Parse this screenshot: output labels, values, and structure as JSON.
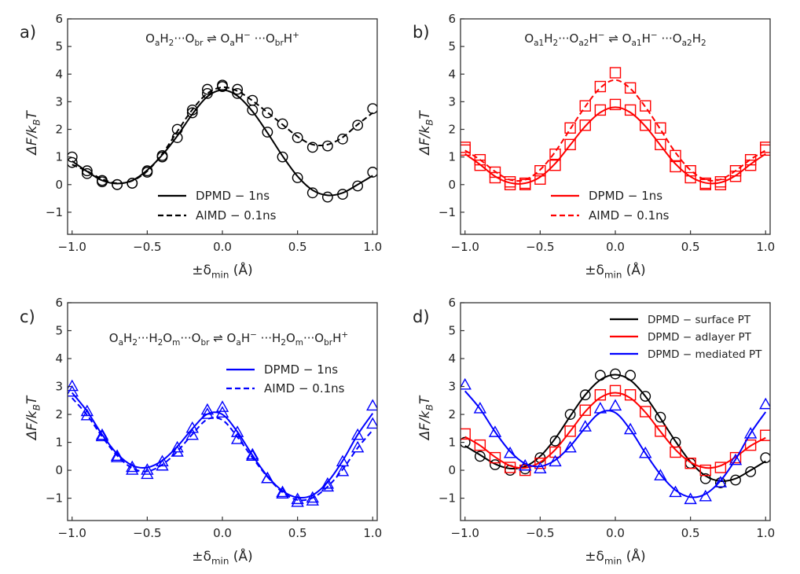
{
  "chart_data": [
    {
      "type": "line",
      "panel_label": "a)",
      "annotation": {
        "parts": [
          [
            "O",
            ""
          ],
          [
            "a",
            "sub"
          ],
          [
            "H",
            ""
          ],
          [
            "2",
            "sub"
          ],
          [
            "···O",
            ""
          ],
          [
            "br",
            "sub"
          ],
          [
            " ⇌ O",
            ""
          ],
          [
            "a",
            "sub"
          ],
          [
            "H",
            ""
          ],
          [
            "−",
            "sup"
          ],
          [
            " ···O",
            ""
          ],
          [
            "br",
            "sub"
          ],
          [
            "H",
            ""
          ],
          [
            "+",
            "sup"
          ]
        ]
      },
      "xlabel": "±δ_min (Å)",
      "ylabel": "ΔF/k_BT",
      "xlim": [
        -1.03,
        1.03
      ],
      "ylim": [
        -1.8,
        6
      ],
      "xticks": [
        -1.0,
        -0.5,
        0.0,
        0.5,
        1.0
      ],
      "xtick_labels": [
        "−1.0",
        "−0.5",
        "0.0",
        "0.5",
        "1.0"
      ],
      "yticks": [
        -1,
        0,
        1,
        2,
        3,
        4,
        5,
        6
      ],
      "ytick_labels": [
        "−1",
        "0",
        "1",
        "2",
        "3",
        "4",
        "5",
        "6"
      ],
      "legend": {
        "placement": "lower-center",
        "entries": [
          {
            "label": "DPMD − 1ns",
            "color": "#000000",
            "dash": "solid"
          },
          {
            "label": "AIMD − 0.1ns",
            "color": "#000000",
            "dash": "dashed"
          }
        ]
      },
      "x": [
        -1.0,
        -0.9,
        -0.8,
        -0.7,
        -0.6,
        -0.5,
        -0.4,
        -0.3,
        -0.2,
        -0.1,
        0.0,
        0.1,
        0.2,
        0.3,
        0.4,
        0.5,
        0.6,
        0.7,
        0.8,
        0.9,
        1.0
      ],
      "series": [
        {
          "name": "DPMD − 1ns",
          "color": "#000000",
          "dash": "solid",
          "marker": "circle",
          "values": [
            1.0,
            0.4,
            0.1,
            0.0,
            0.05,
            0.5,
            1.05,
            1.7,
            2.6,
            3.3,
            3.55,
            3.3,
            2.7,
            1.9,
            1.0,
            0.25,
            -0.3,
            -0.45,
            -0.35,
            -0.05,
            0.45
          ]
        },
        {
          "name": "AIMD − 0.1ns",
          "color": "#000000",
          "dash": "dashed",
          "marker": "circle",
          "values": [
            0.8,
            0.5,
            0.15,
            0.0,
            0.05,
            0.45,
            1.0,
            2.0,
            2.7,
            3.45,
            3.6,
            3.45,
            3.05,
            2.6,
            2.2,
            1.7,
            1.35,
            1.4,
            1.65,
            2.15,
            2.75
          ]
        }
      ]
    },
    {
      "type": "line",
      "panel_label": "b)",
      "annotation": {
        "parts": [
          [
            "O",
            ""
          ],
          [
            "a1",
            "sub"
          ],
          [
            "H",
            ""
          ],
          [
            "2",
            "sub"
          ],
          [
            "···O",
            ""
          ],
          [
            "a2",
            "sub"
          ],
          [
            "H",
            ""
          ],
          [
            "−",
            "sup"
          ],
          [
            " ⇌ O",
            ""
          ],
          [
            "a1",
            "sub"
          ],
          [
            "H",
            ""
          ],
          [
            "−",
            "sup"
          ],
          [
            " ···O",
            ""
          ],
          [
            "a2",
            "sub"
          ],
          [
            "H",
            ""
          ],
          [
            "2",
            "sub"
          ]
        ]
      },
      "xlabel": "±δ_min (Å)",
      "ylabel": "ΔF/k_BT",
      "xlim": [
        -1.03,
        1.03
      ],
      "ylim": [
        -1.8,
        6
      ],
      "xticks": [
        -1.0,
        -0.5,
        0.0,
        0.5,
        1.0
      ],
      "xtick_labels": [
        "−1.0",
        "−0.5",
        "0.0",
        "0.5",
        "1.0"
      ],
      "yticks": [
        -1,
        0,
        1,
        2,
        3,
        4,
        5,
        6
      ],
      "ytick_labels": [
        "−1",
        "0",
        "1",
        "2",
        "3",
        "4",
        "5",
        "6"
      ],
      "legend": {
        "placement": "lower-center",
        "entries": [
          {
            "label": "DPMD − 1ns",
            "color": "#ff0000",
            "dash": "solid"
          },
          {
            "label": "AIMD − 0.1ns",
            "color": "#ff0000",
            "dash": "dashed"
          }
        ]
      },
      "x": [
        -1.0,
        -0.9,
        -0.8,
        -0.7,
        -0.6,
        -0.5,
        -0.4,
        -0.3,
        -0.2,
        -0.1,
        0.0,
        0.1,
        0.2,
        0.3,
        0.4,
        0.5,
        0.6,
        0.7,
        0.8,
        0.9,
        1.0
      ],
      "series": [
        {
          "name": "DPMD − 1ns",
          "color": "#ff0000",
          "dash": "solid",
          "marker": "square",
          "values": [
            1.25,
            0.7,
            0.25,
            0.0,
            0.0,
            0.2,
            0.7,
            1.45,
            2.15,
            2.7,
            2.9,
            2.7,
            2.15,
            1.45,
            0.65,
            0.25,
            0.0,
            0.0,
            0.3,
            0.7,
            1.25
          ]
        },
        {
          "name": "AIMD − 0.1ns",
          "color": "#ff0000",
          "dash": "dashed",
          "marker": "square",
          "values": [
            1.35,
            0.9,
            0.45,
            0.1,
            0.05,
            0.5,
            1.1,
            2.05,
            2.85,
            3.55,
            4.05,
            3.5,
            2.85,
            2.05,
            1.05,
            0.5,
            0.05,
            0.1,
            0.5,
            0.9,
            1.35
          ]
        }
      ]
    },
    {
      "type": "line",
      "panel_label": "c)",
      "annotation": {
        "parts": [
          [
            "O",
            ""
          ],
          [
            "a",
            "sub"
          ],
          [
            "H",
            ""
          ],
          [
            "2",
            "sub"
          ],
          [
            "···H",
            ""
          ],
          [
            "2",
            "sub"
          ],
          [
            "O",
            ""
          ],
          [
            "m",
            "sub"
          ],
          [
            "···O",
            ""
          ],
          [
            "br",
            "sub"
          ],
          [
            " ⇌ O",
            ""
          ],
          [
            "a",
            "sub"
          ],
          [
            "H",
            ""
          ],
          [
            "−",
            "sup"
          ],
          [
            " ···H",
            ""
          ],
          [
            "2",
            "sub"
          ],
          [
            "O",
            ""
          ],
          [
            "m",
            "sub"
          ],
          [
            "···O",
            ""
          ],
          [
            "br",
            "sub"
          ],
          [
            "H",
            ""
          ],
          [
            "+",
            "sup"
          ]
        ]
      },
      "xlabel": "±δ_min (Å)",
      "ylabel": "ΔF/k_BT",
      "xlim": [
        -1.03,
        1.03
      ],
      "ylim": [
        -1.8,
        6
      ],
      "xticks": [
        -1.0,
        -0.5,
        0.0,
        0.5,
        1.0
      ],
      "xtick_labels": [
        "−1.0",
        "−0.5",
        "0.0",
        "0.5",
        "1.0"
      ],
      "yticks": [
        -1,
        0,
        1,
        2,
        3,
        4,
        5,
        6
      ],
      "ytick_labels": [
        "−1",
        "0",
        "1",
        "2",
        "3",
        "4",
        "5",
        "6"
      ],
      "legend": {
        "placement": "upper-right",
        "entries": [
          {
            "label": "DPMD − 1ns",
            "color": "#0000ff",
            "dash": "solid"
          },
          {
            "label": "AIMD − 0.1ns",
            "color": "#0000ff",
            "dash": "dashed"
          }
        ]
      },
      "x": [
        -1.0,
        -0.9,
        -0.8,
        -0.7,
        -0.6,
        -0.5,
        -0.4,
        -0.3,
        -0.2,
        -0.1,
        0.0,
        0.1,
        0.2,
        0.3,
        0.4,
        0.5,
        0.6,
        0.7,
        0.8,
        0.9,
        1.0
      ],
      "series": [
        {
          "name": "DPMD − 1ns",
          "color": "#0000ff",
          "dash": "solid",
          "marker": "triangle",
          "values": [
            3.0,
            2.1,
            1.25,
            0.5,
            0.1,
            0.0,
            0.3,
            0.8,
            1.5,
            2.15,
            2.25,
            1.35,
            0.55,
            -0.3,
            -0.8,
            -1.05,
            -1.0,
            -0.5,
            0.3,
            1.25,
            2.3
          ]
        },
        {
          "name": "AIMD − 0.1ns",
          "color": "#0000ff",
          "dash": "dashed",
          "marker": "triangle",
          "values": [
            2.8,
            1.95,
            1.2,
            0.45,
            0.0,
            -0.15,
            0.15,
            0.65,
            1.25,
            2.0,
            2.05,
            1.1,
            0.5,
            -0.3,
            -0.85,
            -1.15,
            -1.1,
            -0.6,
            -0.05,
            0.8,
            1.65
          ]
        }
      ]
    },
    {
      "type": "line",
      "panel_label": "d)",
      "annotation": {
        "parts": []
      },
      "xlabel": "±δ_min (Å)",
      "ylabel": "ΔF/k_BT",
      "xlim": [
        -1.03,
        1.03
      ],
      "ylim": [
        -1.8,
        6
      ],
      "xticks": [
        -1.0,
        -0.5,
        0.0,
        0.5,
        1.0
      ],
      "xtick_labels": [
        "−1.0",
        "−0.5",
        "0.0",
        "0.5",
        "1.0"
      ],
      "yticks": [
        -1,
        0,
        1,
        2,
        3,
        4,
        5,
        6
      ],
      "ytick_labels": [
        "−1",
        "0",
        "1",
        "2",
        "3",
        "4",
        "5",
        "6"
      ],
      "legend": {
        "placement": "upper-right",
        "entries": [
          {
            "label": "DPMD − surface PT",
            "color": "#000000",
            "dash": "solid"
          },
          {
            "label": "DPMD − adlayer PT",
            "color": "#ff0000",
            "dash": "solid"
          },
          {
            "label": "DPMD − mediated PT",
            "color": "#0000ff",
            "dash": "solid"
          }
        ]
      },
      "x": [
        -1.0,
        -0.9,
        -0.8,
        -0.7,
        -0.6,
        -0.5,
        -0.4,
        -0.3,
        -0.2,
        -0.1,
        0.0,
        0.1,
        0.2,
        0.3,
        0.4,
        0.5,
        0.6,
        0.7,
        0.8,
        0.9,
        1.0
      ],
      "series": [
        {
          "name": "DPMD − surface PT",
          "color": "#000000",
          "dash": "solid",
          "marker": "circle",
          "values": [
            1.0,
            0.5,
            0.2,
            0.0,
            0.05,
            0.45,
            1.05,
            2.0,
            2.7,
            3.4,
            3.45,
            3.4,
            2.65,
            1.9,
            1.0,
            0.25,
            -0.3,
            -0.45,
            -0.35,
            -0.05,
            0.45
          ]
        },
        {
          "name": "DPMD − adlayer PT",
          "color": "#ff0000",
          "dash": "solid",
          "marker": "square",
          "values": [
            1.3,
            0.9,
            0.45,
            0.1,
            0.0,
            0.25,
            0.65,
            1.4,
            2.15,
            2.7,
            2.85,
            2.7,
            2.1,
            1.4,
            0.65,
            0.25,
            0.0,
            0.1,
            0.45,
            0.9,
            1.25
          ]
        },
        {
          "name": "DPMD − mediated PT",
          "color": "#0000ff",
          "dash": "solid",
          "marker": "triangle",
          "values": [
            3.05,
            2.2,
            1.35,
            0.6,
            0.15,
            0.05,
            0.3,
            0.8,
            1.55,
            2.2,
            2.3,
            1.45,
            0.6,
            -0.2,
            -0.8,
            -1.05,
            -0.95,
            -0.45,
            0.35,
            1.3,
            2.35
          ]
        }
      ]
    }
  ]
}
